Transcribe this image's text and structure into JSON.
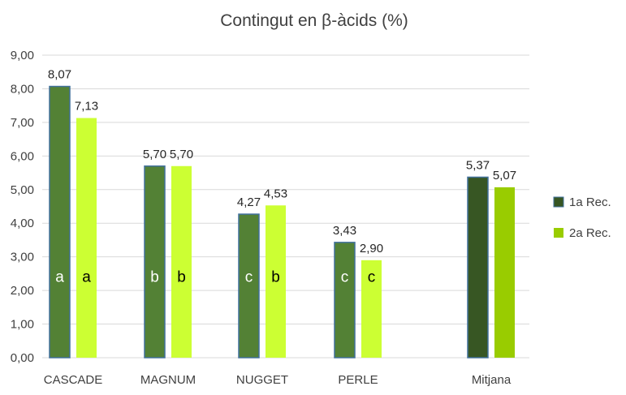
{
  "chart_data": {
    "type": "bar",
    "title": "Contingut en β-àcids (%)",
    "xlabel": "",
    "ylabel": "",
    "ylim": [
      0,
      9
    ],
    "yticks": [
      "0,00",
      "1,00",
      "2,00",
      "3,00",
      "4,00",
      "5,00",
      "6,00",
      "7,00",
      "8,00",
      "9,00"
    ],
    "grid": true,
    "legend_position": "right",
    "categories": [
      "CASCADE",
      "MAGNUM",
      "NUGGET",
      "PERLE",
      "Mitjana"
    ],
    "series": [
      {
        "name": "1a Rec.",
        "color": "#538135",
        "mean_color": "#375623",
        "values": [
          8.07,
          5.7,
          4.27,
          3.43,
          5.37
        ],
        "labels": [
          "8,07",
          "5,70",
          "4,27",
          "3,43",
          "5,37"
        ],
        "letters": [
          "a",
          "b",
          "c",
          "c",
          ""
        ]
      },
      {
        "name": "2a Rec.",
        "color": "#ccff33",
        "mean_color": "#99cc00",
        "values": [
          7.13,
          5.7,
          4.53,
          2.9,
          5.07
        ],
        "labels": [
          "7,13",
          "5,70",
          "4,53",
          "2,90",
          "5,07"
        ],
        "letters": [
          "a",
          "b",
          "b",
          "c",
          ""
        ]
      }
    ]
  }
}
